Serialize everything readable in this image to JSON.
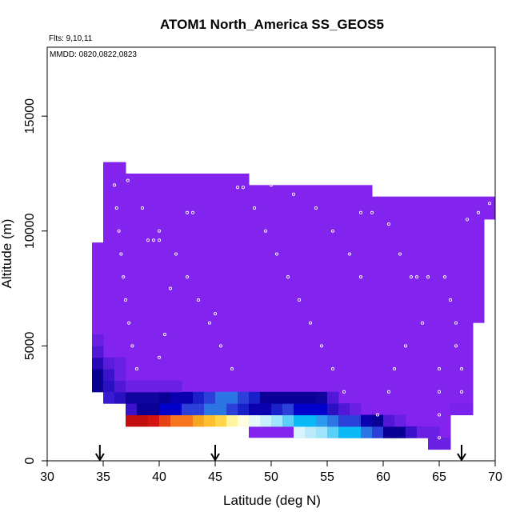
{
  "chart_data": {
    "type": "heatmap",
    "title": "ATOM1 North_America SS_GEOS5",
    "annotations": [
      "Flts: 9,10,11",
      "MMDD: 0820,0822,0823"
    ],
    "xlabel": "Latitude (deg N)",
    "ylabel": "Altitude (m)",
    "xlim": [
      30,
      70
    ],
    "ylim": [
      0,
      18000
    ],
    "xticks": [
      30,
      35,
      40,
      45,
      50,
      55,
      60,
      65,
      70
    ],
    "yticks": [
      0,
      5000,
      10000,
      15000
    ],
    "grid": false,
    "cell_size": {
      "lat": 1,
      "alt": 500
    },
    "colors": {
      "background": "#8224EE",
      "scale": [
        "#07008E",
        "#0000CD",
        "#2A40D8",
        "#2B75E5",
        "#0AB9F5",
        "#9EE4FB",
        "#FFFFE0",
        "#FFD54A",
        "#F5A623",
        "#F5761E",
        "#E54312",
        "#C20E0E"
      ],
      "track": "#FFFFFF"
    },
    "domain_columns": [
      {
        "lat_min": 34,
        "lat_max": 35,
        "alt_min": 3000,
        "alt_max": 9500
      },
      {
        "lat_min": 35,
        "lat_max": 37,
        "alt_min": 2500,
        "alt_max": 13000
      },
      {
        "lat_min": 37,
        "lat_max": 48,
        "alt_min": 1500,
        "alt_max": 12500
      },
      {
        "lat_min": 48,
        "lat_max": 59,
        "alt_min": 1000,
        "alt_max": 12000
      },
      {
        "lat_min": 59,
        "lat_max": 64,
        "alt_min": 1000,
        "alt_max": 11500
      },
      {
        "lat_min": 64,
        "lat_max": 66,
        "alt_min": 500,
        "alt_max": 11500
      },
      {
        "lat_min": 66,
        "lat_max": 68,
        "alt_min": 2000,
        "alt_max": 11500
      },
      {
        "lat_min": 68,
        "lat_max": 69,
        "alt_min": 6000,
        "alt_max": 11500
      },
      {
        "lat_min": 69,
        "lat_max": 70,
        "alt_min": 10500,
        "alt_max": 11500
      }
    ],
    "cells": [
      {
        "lat": 34,
        "alt": 3000,
        "color": "#0A0096"
      },
      {
        "lat": 34,
        "alt": 3500,
        "color": "#0A0096"
      },
      {
        "lat": 34,
        "alt": 4000,
        "color": "#2A08B8"
      },
      {
        "lat": 34,
        "alt": 4500,
        "color": "#5018D6"
      },
      {
        "lat": 34,
        "alt": 5000,
        "color": "#6A1EE2"
      },
      {
        "lat": 35,
        "alt": 3000,
        "color": "#2A10C0"
      },
      {
        "lat": 35,
        "alt": 3500,
        "color": "#3A12CA"
      },
      {
        "lat": 35,
        "alt": 4000,
        "color": "#5A1CDC"
      },
      {
        "lat": 35,
        "alt": 2500,
        "color": "#3A1AD0"
      },
      {
        "lat": 36,
        "alt": 2500,
        "color": "#2A10C0"
      },
      {
        "lat": 36,
        "alt": 3000,
        "color": "#5018D6"
      },
      {
        "lat": 36,
        "alt": 3500,
        "color": "#6A20E2"
      },
      {
        "lat": 36,
        "alt": 4000,
        "color": "#6A20E2"
      },
      {
        "lat": 37,
        "alt": 1500,
        "color": "#C20E0E"
      },
      {
        "lat": 37,
        "alt": 2000,
        "color": "#3A12CA"
      },
      {
        "lat": 37,
        "alt": 2500,
        "color": "#10049E"
      },
      {
        "lat": 37,
        "alt": 3000,
        "color": "#6A20E2"
      },
      {
        "lat": 38,
        "alt": 1500,
        "color": "#C20E0E"
      },
      {
        "lat": 38,
        "alt": 2000,
        "color": "#0A0096"
      },
      {
        "lat": 38,
        "alt": 2500,
        "color": "#10049E"
      },
      {
        "lat": 38,
        "alt": 3000,
        "color": "#6A20E2"
      },
      {
        "lat": 39,
        "alt": 1500,
        "color": "#D51212"
      },
      {
        "lat": 39,
        "alt": 2000,
        "color": "#0A0096"
      },
      {
        "lat": 39,
        "alt": 2500,
        "color": "#10049E"
      },
      {
        "lat": 39,
        "alt": 3000,
        "color": "#6A20E2"
      },
      {
        "lat": 40,
        "alt": 1500,
        "color": "#E54312"
      },
      {
        "lat": 40,
        "alt": 2000,
        "color": "#0000CD"
      },
      {
        "lat": 40,
        "alt": 2500,
        "color": "#0A0096"
      },
      {
        "lat": 40,
        "alt": 3000,
        "color": "#6A20E2"
      },
      {
        "lat": 41,
        "alt": 1500,
        "color": "#F5761E"
      },
      {
        "lat": 41,
        "alt": 2000,
        "color": "#0000CD"
      },
      {
        "lat": 41,
        "alt": 2500,
        "color": "#0A00B0"
      },
      {
        "lat": 41,
        "alt": 3000,
        "color": "#6A20E2"
      },
      {
        "lat": 42,
        "alt": 1500,
        "color": "#F5761E"
      },
      {
        "lat": 42,
        "alt": 2000,
        "color": "#2A40D8"
      },
      {
        "lat": 42,
        "alt": 2500,
        "color": "#0A00B0"
      },
      {
        "lat": 43,
        "alt": 1500,
        "color": "#F5A623"
      },
      {
        "lat": 43,
        "alt": 2000,
        "color": "#2A40D8"
      },
      {
        "lat": 43,
        "alt": 2500,
        "color": "#1A20C8"
      },
      {
        "lat": 44,
        "alt": 1500,
        "color": "#FFBE2E"
      },
      {
        "lat": 44,
        "alt": 2000,
        "color": "#2B75E5"
      },
      {
        "lat": 44,
        "alt": 2500,
        "color": "#2A40D8"
      },
      {
        "lat": 45,
        "alt": 1500,
        "color": "#FFD54A"
      },
      {
        "lat": 45,
        "alt": 2000,
        "color": "#2B75E5"
      },
      {
        "lat": 45,
        "alt": 2500,
        "color": "#2B75E5"
      },
      {
        "lat": 46,
        "alt": 1500,
        "color": "#FFF5A0"
      },
      {
        "lat": 46,
        "alt": 2000,
        "color": "#2A40D8"
      },
      {
        "lat": 46,
        "alt": 2500,
        "color": "#2B75E5"
      },
      {
        "lat": 47,
        "alt": 1500,
        "color": "#FFFFE0"
      },
      {
        "lat": 47,
        "alt": 2000,
        "color": "#1A20C8"
      },
      {
        "lat": 47,
        "alt": 2500,
        "color": "#2A40D8"
      },
      {
        "lat": 48,
        "alt": 1500,
        "color": "#E6F8FA"
      },
      {
        "lat": 48,
        "alt": 2000,
        "color": "#0A00B0"
      },
      {
        "lat": 48,
        "alt": 2500,
        "color": "#1A20C8"
      },
      {
        "lat": 49,
        "alt": 1500,
        "color": "#C8F0FA"
      },
      {
        "lat": 49,
        "alt": 2000,
        "color": "#0A00B0"
      },
      {
        "lat": 49,
        "alt": 2500,
        "color": "#0A0096"
      },
      {
        "lat": 50,
        "alt": 1500,
        "color": "#9EE4FB"
      },
      {
        "lat": 50,
        "alt": 2000,
        "color": "#1A20C8"
      },
      {
        "lat": 50,
        "alt": 2500,
        "color": "#0A0096"
      },
      {
        "lat": 51,
        "alt": 1500,
        "color": "#5AD0F8"
      },
      {
        "lat": 51,
        "alt": 2000,
        "color": "#2A40D8"
      },
      {
        "lat": 51,
        "alt": 2500,
        "color": "#0A0096"
      },
      {
        "lat": 52,
        "alt": 1000,
        "color": "#D8F4FA"
      },
      {
        "lat": 52,
        "alt": 1500,
        "color": "#0AB9F5"
      },
      {
        "lat": 52,
        "alt": 2000,
        "color": "#0000CD"
      },
      {
        "lat": 52,
        "alt": 2500,
        "color": "#0A0096"
      },
      {
        "lat": 53,
        "alt": 1000,
        "color": "#B8EAFA"
      },
      {
        "lat": 53,
        "alt": 1500,
        "color": "#0AB9F5"
      },
      {
        "lat": 53,
        "alt": 2000,
        "color": "#0000CD"
      },
      {
        "lat": 53,
        "alt": 2500,
        "color": "#0A0096"
      },
      {
        "lat": 54,
        "alt": 1000,
        "color": "#9EE4FB"
      },
      {
        "lat": 54,
        "alt": 1500,
        "color": "#2B9AEE"
      },
      {
        "lat": 54,
        "alt": 2000,
        "color": "#0000CD"
      },
      {
        "lat": 54,
        "alt": 2500,
        "color": "#10049E"
      },
      {
        "lat": 55,
        "alt": 1000,
        "color": "#5AD0F8"
      },
      {
        "lat": 55,
        "alt": 1500,
        "color": "#2B75E5"
      },
      {
        "lat": 55,
        "alt": 2000,
        "color": "#2A10C0"
      },
      {
        "lat": 55,
        "alt": 2500,
        "color": "#5018D6"
      },
      {
        "lat": 56,
        "alt": 1000,
        "color": "#0AB9F5"
      },
      {
        "lat": 56,
        "alt": 1500,
        "color": "#2A40D8"
      },
      {
        "lat": 56,
        "alt": 2000,
        "color": "#5018D6"
      },
      {
        "lat": 57,
        "alt": 1000,
        "color": "#0AB9F5"
      },
      {
        "lat": 57,
        "alt": 1500,
        "color": "#2A40D8"
      },
      {
        "lat": 57,
        "alt": 2000,
        "color": "#6A20E2"
      },
      {
        "lat": 58,
        "alt": 1000,
        "color": "#2B75E5"
      },
      {
        "lat": 58,
        "alt": 1500,
        "color": "#0A00B0"
      },
      {
        "lat": 59,
        "alt": 1000,
        "color": "#2A40D8"
      },
      {
        "lat": 59,
        "alt": 1500,
        "color": "#0A0096"
      },
      {
        "lat": 60,
        "alt": 1000,
        "color": "#0A0096"
      },
      {
        "lat": 60,
        "alt": 1500,
        "color": "#5018D6"
      },
      {
        "lat": 61,
        "alt": 1000,
        "color": "#0A0096"
      },
      {
        "lat": 61,
        "alt": 1500,
        "color": "#6A20E2"
      },
      {
        "lat": 62,
        "alt": 1000,
        "color": "#3A12CA"
      },
      {
        "lat": 63,
        "alt": 1000,
        "color": "#6A20E2"
      },
      {
        "lat": 64,
        "alt": 500,
        "color": "#6A20E2"
      },
      {
        "lat": 64,
        "alt": 1000,
        "color": "#6A20E2"
      },
      {
        "lat": 65,
        "alt": 500,
        "color": "#6A20E2"
      },
      {
        "lat": 66,
        "alt": 2000,
        "color": "#7A22EA"
      },
      {
        "lat": 67,
        "alt": 2000,
        "color": "#7A22EA"
      }
    ],
    "flight_track": [
      {
        "lat": 36.0,
        "alt": 12000
      },
      {
        "lat": 36.2,
        "alt": 11000
      },
      {
        "lat": 36.4,
        "alt": 10000
      },
      {
        "lat": 36.6,
        "alt": 9000
      },
      {
        "lat": 36.8,
        "alt": 8000
      },
      {
        "lat": 37.0,
        "alt": 7000
      },
      {
        "lat": 37.3,
        "alt": 6000
      },
      {
        "lat": 37.6,
        "alt": 5000
      },
      {
        "lat": 38.0,
        "alt": 4000
      },
      {
        "lat": 37.2,
        "alt": 12200
      },
      {
        "lat": 38.5,
        "alt": 11000
      },
      {
        "lat": 40.0,
        "alt": 10000
      },
      {
        "lat": 41.5,
        "alt": 9000
      },
      {
        "lat": 42.5,
        "alt": 8000
      },
      {
        "lat": 43.5,
        "alt": 7000
      },
      {
        "lat": 44.5,
        "alt": 6000
      },
      {
        "lat": 45.5,
        "alt": 5000
      },
      {
        "lat": 46.5,
        "alt": 4000
      },
      {
        "lat": 39.0,
        "alt": 9600
      },
      {
        "lat": 39.5,
        "alt": 9600
      },
      {
        "lat": 40.0,
        "alt": 9600
      },
      {
        "lat": 42.5,
        "alt": 10800
      },
      {
        "lat": 43.0,
        "alt": 10800
      },
      {
        "lat": 45.0,
        "alt": 6400
      },
      {
        "lat": 47.0,
        "alt": 11900
      },
      {
        "lat": 47.5,
        "alt": 11900
      },
      {
        "lat": 48.5,
        "alt": 11000
      },
      {
        "lat": 49.5,
        "alt": 10000
      },
      {
        "lat": 50.5,
        "alt": 9000
      },
      {
        "lat": 51.5,
        "alt": 8000
      },
      {
        "lat": 52.5,
        "alt": 7000
      },
      {
        "lat": 53.5,
        "alt": 6000
      },
      {
        "lat": 54.5,
        "alt": 5000
      },
      {
        "lat": 55.5,
        "alt": 4000
      },
      {
        "lat": 56.5,
        "alt": 3000
      },
      {
        "lat": 52.0,
        "alt": 11600
      },
      {
        "lat": 54.0,
        "alt": 11000
      },
      {
        "lat": 55.5,
        "alt": 10000
      },
      {
        "lat": 57.0,
        "alt": 9000
      },
      {
        "lat": 58.0,
        "alt": 8000
      },
      {
        "lat": 58.0,
        "alt": 10800
      },
      {
        "lat": 59.0,
        "alt": 10800
      },
      {
        "lat": 60.5,
        "alt": 10300
      },
      {
        "lat": 61.5,
        "alt": 9000
      },
      {
        "lat": 62.5,
        "alt": 8000
      },
      {
        "lat": 63.0,
        "alt": 8000
      },
      {
        "lat": 64.0,
        "alt": 8000
      },
      {
        "lat": 65.5,
        "alt": 8000
      },
      {
        "lat": 66.0,
        "alt": 7000
      },
      {
        "lat": 66.5,
        "alt": 6000
      },
      {
        "lat": 66.5,
        "alt": 5000
      },
      {
        "lat": 67.0,
        "alt": 4000
      },
      {
        "lat": 67.0,
        "alt": 3000
      },
      {
        "lat": 67.5,
        "alt": 10500
      },
      {
        "lat": 68.5,
        "alt": 10800
      },
      {
        "lat": 69.5,
        "alt": 11200
      },
      {
        "lat": 65.0,
        "alt": 4000
      },
      {
        "lat": 65.0,
        "alt": 3000
      },
      {
        "lat": 65.0,
        "alt": 2000
      },
      {
        "lat": 65.0,
        "alt": 1000
      },
      {
        "lat": 63.5,
        "alt": 6000
      },
      {
        "lat": 62.0,
        "alt": 5000
      },
      {
        "lat": 61.0,
        "alt": 4000
      },
      {
        "lat": 60.5,
        "alt": 3000
      },
      {
        "lat": 59.5,
        "alt": 2000
      },
      {
        "lat": 50.0,
        "alt": 12000
      },
      {
        "lat": 41.0,
        "alt": 7500
      },
      {
        "lat": 40.5,
        "alt": 5500
      },
      {
        "lat": 40.0,
        "alt": 4500
      }
    ],
    "flight_markers": [
      {
        "lat": 34.7,
        "label": "arrow"
      },
      {
        "lat": 45.0,
        "label": "arrow"
      },
      {
        "lat": 67.0,
        "label": "arrow"
      }
    ]
  }
}
